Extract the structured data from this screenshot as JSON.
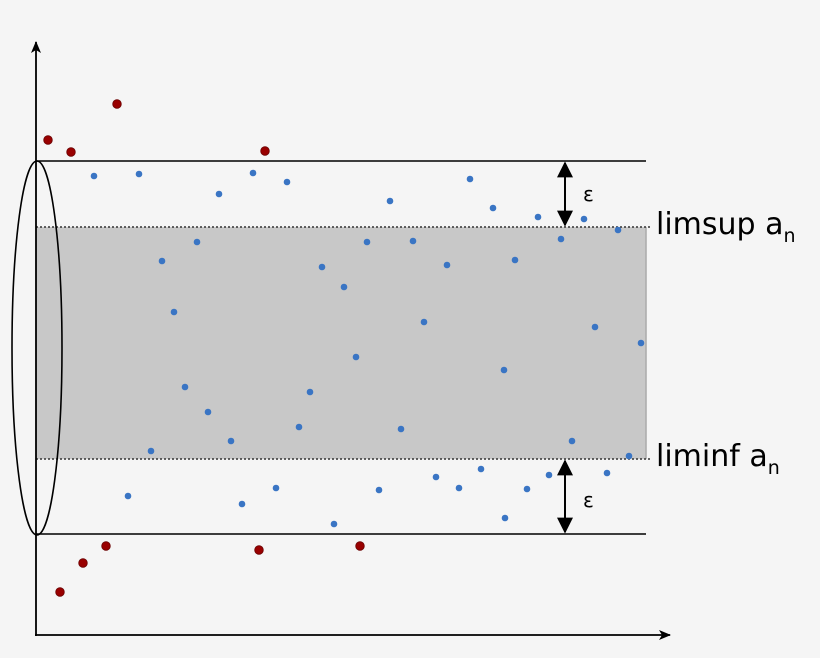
{
  "epsilon_upper": "ε",
  "epsilon_lower": "ε",
  "limsup_label": {
    "text": "limsup a",
    "subscript": "n"
  },
  "liminf_label": {
    "text": "liminf a",
    "subscript": "n"
  }
}
